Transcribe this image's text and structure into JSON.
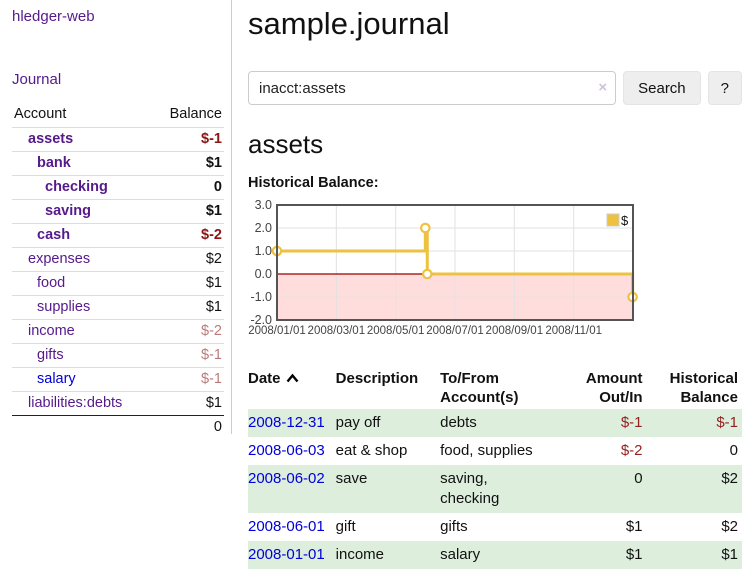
{
  "app": {
    "brand": "hledger-web",
    "nav_journal": "Journal"
  },
  "colors": {
    "link_purple": "#551a8b",
    "link_blue": "#0000d8",
    "negative_strong": "#8b1515",
    "negative_soft": "#bb7b7b",
    "negative_table": "#962020",
    "row_shade_green": "#ddeedd",
    "chart_line": "#edc240",
    "chart_negative_fill": "#ffdddd",
    "chart_zero_line": "#990000",
    "chart_border": "#545454",
    "button_bg": "#eeeeee"
  },
  "sidebar": {
    "headers": {
      "account": "Account",
      "balance": "Balance"
    },
    "rows": [
      {
        "label": "assets",
        "indent": 1,
        "bold": true,
        "balance": "$-1",
        "balance_style": "neg-strong",
        "link_style": null
      },
      {
        "label": "bank",
        "indent": 2,
        "bold": true,
        "balance": "$1",
        "balance_style": null,
        "link_style": null
      },
      {
        "label": "checking",
        "indent": 3,
        "bold": true,
        "balance": "0",
        "balance_style": null,
        "link_style": null
      },
      {
        "label": "saving",
        "indent": 3,
        "bold": true,
        "balance": "$1",
        "balance_style": null,
        "link_style": null
      },
      {
        "label": "cash",
        "indent": 2,
        "bold": true,
        "balance": "$-2",
        "balance_style": "neg-strong",
        "link_style": null
      },
      {
        "label": "expenses",
        "indent": 1,
        "bold": false,
        "balance": "$2",
        "balance_style": null,
        "link_style": null
      },
      {
        "label": "food",
        "indent": 2,
        "bold": false,
        "balance": "$1",
        "balance_style": null,
        "link_style": null
      },
      {
        "label": "supplies",
        "indent": 2,
        "bold": false,
        "balance": "$1",
        "balance_style": null,
        "link_style": null
      },
      {
        "label": "income",
        "indent": 1,
        "bold": false,
        "balance": "$-2",
        "balance_style": "neg-soft",
        "link_style": null
      },
      {
        "label": "gifts",
        "indent": 2,
        "bold": false,
        "balance": "$-1",
        "balance_style": "neg-soft",
        "link_style": null
      },
      {
        "label": "salary",
        "indent": 2,
        "bold": false,
        "balance": "$-1",
        "balance_style": "neg-soft",
        "link_style": "blue"
      },
      {
        "label": "liabilities:debts",
        "indent": 1,
        "bold": false,
        "balance": "$1",
        "balance_style": null,
        "link_style": null
      }
    ],
    "total": "0"
  },
  "main": {
    "title": "sample.journal",
    "search": {
      "value": "inacct:assets",
      "clear_icon": "×",
      "button": "Search",
      "help": "?"
    },
    "account_heading": "assets",
    "chart_heading": "Historical Balance:"
  },
  "chart_data": {
    "type": "line",
    "line_style": "steps",
    "title": "Historical Balance:",
    "series": [
      {
        "name": "$",
        "color": "#edc240",
        "points": [
          {
            "date": "2008/01/01",
            "value": 1.0
          },
          {
            "date": "2008/06/01",
            "value": 2.0
          },
          {
            "date": "2008/06/03",
            "value": 0.0
          },
          {
            "date": "2008/12/31",
            "value": -1.0
          }
        ]
      }
    ],
    "x_axis": {
      "range": [
        "2008/01/01",
        "2008/12/31"
      ],
      "tick_labels": [
        "2008/01/01",
        "2008/03/01",
        "2008/05/01",
        "2008/07/01",
        "2008/09/01",
        "2008/11/01"
      ],
      "tick_positions_months": [
        0,
        2,
        4,
        6,
        8,
        10
      ]
    },
    "y_axis": {
      "range": [
        -2.0,
        3.0
      ],
      "tick_labels": [
        "3.0",
        "2.0",
        "1.0",
        "0.0",
        "-1.0",
        "-2.0"
      ]
    },
    "grid": true,
    "legend": {
      "position": "top-right",
      "label": "$"
    },
    "negative_region_fill": "#ffdddd",
    "zero_line_color": "#990000"
  },
  "register": {
    "headers": [
      {
        "label": "Date",
        "sort_icon": "chevron-up",
        "align": "left"
      },
      {
        "label": "Description",
        "align": "left"
      },
      {
        "label": "To/From Account(s)",
        "align": "left"
      },
      {
        "label": "Amount Out/In",
        "align": "right"
      },
      {
        "label": "Historical Balance",
        "align": "right"
      }
    ],
    "rows": [
      {
        "date": "2008-12-31",
        "description": "pay off",
        "accounts": "debts",
        "amount": "$-1",
        "amount_negative": true,
        "balance": "$-1",
        "balance_negative": true,
        "shaded": true
      },
      {
        "date": "2008-06-03",
        "description": "eat & shop",
        "accounts": "food, supplies",
        "amount": "$-2",
        "amount_negative": true,
        "balance": "0",
        "balance_negative": false,
        "shaded": false
      },
      {
        "date": "2008-06-02",
        "description": "save",
        "accounts": "saving, checking",
        "amount": "0",
        "amount_negative": false,
        "balance": "$2",
        "balance_negative": false,
        "shaded": true
      },
      {
        "date": "2008-06-01",
        "description": "gift",
        "accounts": "gifts",
        "amount": "$1",
        "amount_negative": false,
        "balance": "$2",
        "balance_negative": false,
        "shaded": false
      },
      {
        "date": "2008-01-01",
        "description": "income",
        "accounts": "salary",
        "amount": "$1",
        "amount_negative": false,
        "balance": "$1",
        "balance_negative": false,
        "shaded": true
      }
    ]
  }
}
